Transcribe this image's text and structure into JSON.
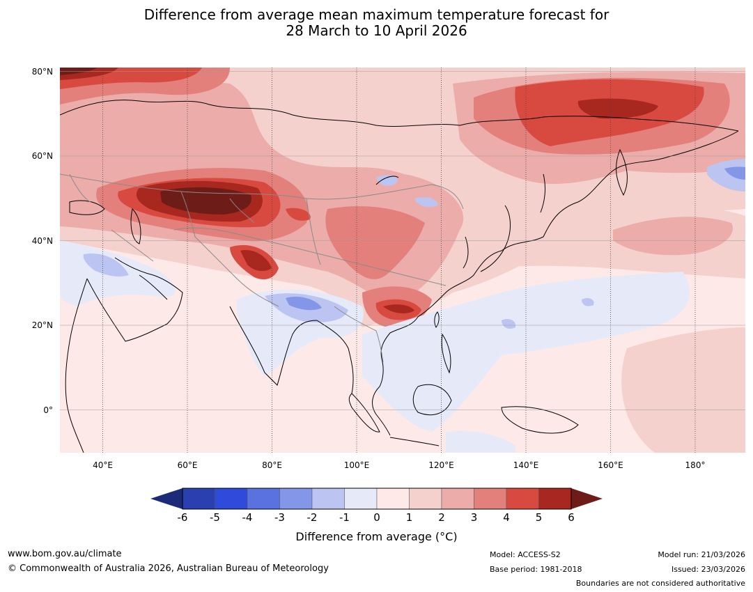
{
  "title": {
    "line1": "Difference from average mean maximum temperature forecast for",
    "line2": "28 March to 10 April 2026"
  },
  "map": {
    "lat_ticks": [
      "80°N",
      "60°N",
      "40°N",
      "20°N",
      "0°"
    ],
    "lon_ticks": [
      "40°E",
      "60°E",
      "80°E",
      "100°E",
      "120°E",
      "140°E",
      "160°E",
      "180°"
    ],
    "lat_range": [
      -10,
      80
    ],
    "lon_range": [
      30,
      190
    ]
  },
  "colorbar": {
    "ticks": [
      "-6",
      "-5",
      "-4",
      "-3",
      "-2",
      "-1",
      "0",
      "1",
      "2",
      "3",
      "4",
      "5",
      "6"
    ],
    "colors": [
      "#1c2a7a",
      "#2a3fb0",
      "#2f4bdc",
      "#5a72e0",
      "#8496e8",
      "#bcc5f2",
      "#e6eaf8",
      "#fde9e7",
      "#f5d1cd",
      "#ecadaa",
      "#e3807b",
      "#d84a40",
      "#a8271f",
      "#6e1c17"
    ],
    "label": "Difference from average (°C)"
  },
  "footer": {
    "url": "www.bom.gov.au/climate",
    "copyright": "© Commonwealth of Australia 2026, Australian Bureau of Meteorology",
    "model": "Model: ACCESS-S2",
    "base_period": "Base period: 1981-2018",
    "model_run": "Model run: 21/03/2026",
    "issued": "Issued: 23/03/2026",
    "disclaimer": "Boundaries are not considered authoritative"
  }
}
